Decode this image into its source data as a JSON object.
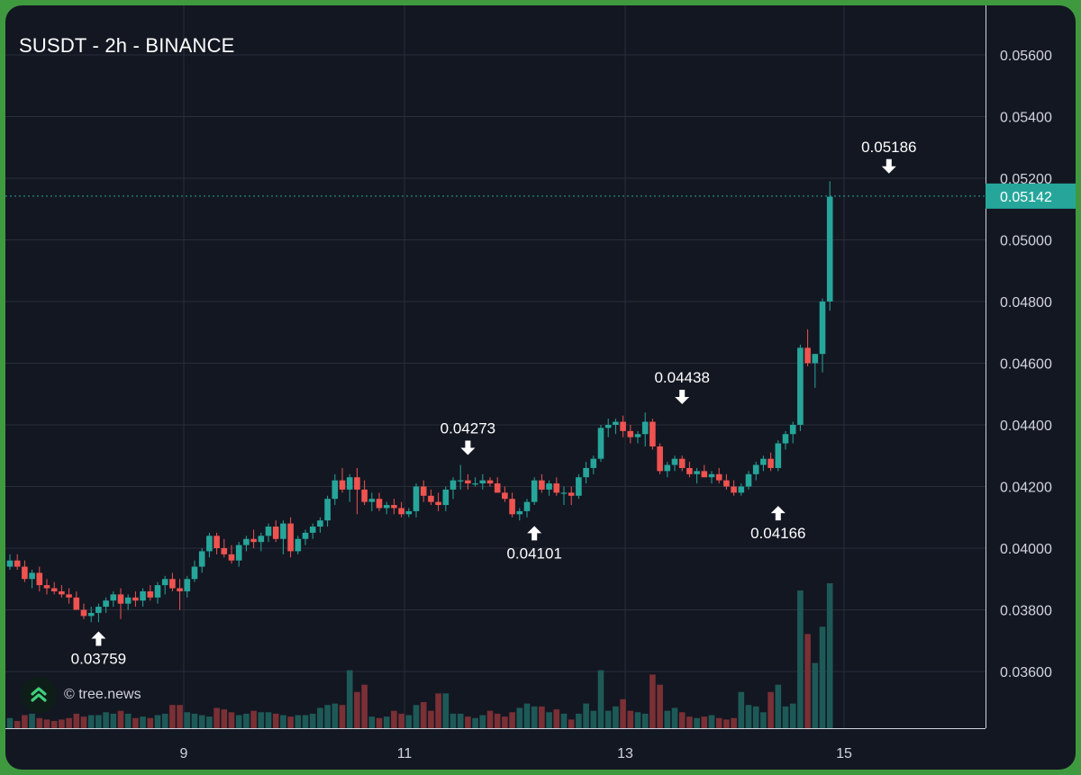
{
  "title": "SUSDT - 2h - BINANCE",
  "watermark": "© tree.news",
  "colors": {
    "background": "#131722",
    "up": "#26a69a",
    "down": "#ef5350",
    "grid": "#2a2e39",
    "axis_text": "#d1d4dc",
    "price_badge": "#26a69a"
  },
  "chart_data": {
    "type": "candlestick",
    "symbol": "SUSDT",
    "interval": "2h",
    "exchange": "BINANCE",
    "x_ticks": [
      "9",
      "11",
      "13",
      "15"
    ],
    "y_ticks": [
      "0.03600",
      "0.03800",
      "0.04000",
      "0.04200",
      "0.04400",
      "0.04600",
      "0.04800",
      "0.05000",
      "0.05200",
      "0.05400",
      "0.05600"
    ],
    "ylim": [
      0.0342,
      0.0576
    ],
    "grid": true,
    "last_price": "0.05142",
    "annotations": [
      {
        "label": "0.03759",
        "bar": 12,
        "price": 0.03759,
        "type": "low"
      },
      {
        "label": "0.04273",
        "bar": 62,
        "price": 0.04273,
        "type": "high"
      },
      {
        "label": "0.04101",
        "bar": 71,
        "price": 0.04101,
        "type": "low"
      },
      {
        "label": "0.04438",
        "bar": 91,
        "price": 0.04438,
        "type": "high"
      },
      {
        "label": "0.04166",
        "bar": 104,
        "price": 0.04166,
        "type": "low"
      },
      {
        "label": "0.05186",
        "bar": 119,
        "price": 0.05186,
        "type": "high"
      }
    ],
    "bars": [
      [
        0.0394,
        0.0398,
        0.0393,
        0.0396,
        0.07
      ],
      [
        0.0396,
        0.0398,
        0.0393,
        0.0394,
        0.05
      ],
      [
        0.0394,
        0.0396,
        0.0389,
        0.039,
        0.09
      ],
      [
        0.039,
        0.0393,
        0.0387,
        0.0392,
        0.1
      ],
      [
        0.0392,
        0.0394,
        0.0386,
        0.0388,
        0.07
      ],
      [
        0.0388,
        0.039,
        0.0385,
        0.0387,
        0.06
      ],
      [
        0.0387,
        0.0389,
        0.0385,
        0.0386,
        0.05
      ],
      [
        0.0386,
        0.0388,
        0.0384,
        0.0385,
        0.06
      ],
      [
        0.0385,
        0.0387,
        0.0382,
        0.0384,
        0.07
      ],
      [
        0.0384,
        0.0386,
        0.038,
        0.038,
        0.1
      ],
      [
        0.038,
        0.0382,
        0.0377,
        0.0378,
        0.08
      ],
      [
        0.0378,
        0.0381,
        0.0376,
        0.0379,
        0.09
      ],
      [
        0.0379,
        0.0382,
        0.0376,
        0.0381,
        0.09
      ],
      [
        0.0381,
        0.0384,
        0.0379,
        0.0383,
        0.11
      ],
      [
        0.0383,
        0.0386,
        0.0381,
        0.0385,
        0.1
      ],
      [
        0.0385,
        0.0387,
        0.0377,
        0.0382,
        0.12
      ],
      [
        0.0382,
        0.0385,
        0.038,
        0.0384,
        0.1
      ],
      [
        0.0384,
        0.0386,
        0.0381,
        0.0383,
        0.07
      ],
      [
        0.0383,
        0.0387,
        0.0381,
        0.0386,
        0.08
      ],
      [
        0.0386,
        0.0388,
        0.0383,
        0.0384,
        0.07
      ],
      [
        0.0384,
        0.0389,
        0.0382,
        0.0388,
        0.09
      ],
      [
        0.0388,
        0.0391,
        0.0385,
        0.039,
        0.1
      ],
      [
        0.039,
        0.0392,
        0.0386,
        0.0387,
        0.16
      ],
      [
        0.0387,
        0.039,
        0.038,
        0.0386,
        0.16
      ],
      [
        0.0386,
        0.0391,
        0.0384,
        0.039,
        0.11
      ],
      [
        0.039,
        0.0396,
        0.0389,
        0.0394,
        0.1
      ],
      [
        0.0394,
        0.04,
        0.0392,
        0.0399,
        0.09
      ],
      [
        0.0399,
        0.0405,
        0.0397,
        0.0404,
        0.08
      ],
      [
        0.0404,
        0.0405,
        0.0398,
        0.04,
        0.14
      ],
      [
        0.04,
        0.0403,
        0.0397,
        0.0398,
        0.13
      ],
      [
        0.0398,
        0.0401,
        0.0395,
        0.0396,
        0.11
      ],
      [
        0.0396,
        0.0402,
        0.0394,
        0.0401,
        0.09
      ],
      [
        0.0401,
        0.0404,
        0.0399,
        0.0403,
        0.1
      ],
      [
        0.0403,
        0.0406,
        0.04,
        0.0402,
        0.12
      ],
      [
        0.0402,
        0.0405,
        0.0399,
        0.0404,
        0.11
      ],
      [
        0.0404,
        0.0408,
        0.0402,
        0.0407,
        0.11
      ],
      [
        0.0407,
        0.0409,
        0.0402,
        0.0403,
        0.1
      ],
      [
        0.0403,
        0.0409,
        0.0398,
        0.0408,
        0.09
      ],
      [
        0.0408,
        0.041,
        0.0397,
        0.0399,
        0.08
      ],
      [
        0.0399,
        0.0404,
        0.0398,
        0.0403,
        0.09
      ],
      [
        0.0403,
        0.0406,
        0.0401,
        0.0405,
        0.09
      ],
      [
        0.0405,
        0.0408,
        0.0403,
        0.0407,
        0.1
      ],
      [
        0.0407,
        0.041,
        0.0405,
        0.0409,
        0.14
      ],
      [
        0.0409,
        0.0417,
        0.0407,
        0.0416,
        0.16
      ],
      [
        0.0416,
        0.0424,
        0.0414,
        0.0422,
        0.17
      ],
      [
        0.0422,
        0.0426,
        0.0418,
        0.0419,
        0.16
      ],
      [
        0.0419,
        0.0424,
        0.0415,
        0.0423,
        0.4
      ],
      [
        0.0423,
        0.0426,
        0.0411,
        0.0419,
        0.25
      ],
      [
        0.0419,
        0.0422,
        0.0414,
        0.0415,
        0.3
      ],
      [
        0.0415,
        0.0418,
        0.0412,
        0.0416,
        0.08
      ],
      [
        0.0416,
        0.0418,
        0.0412,
        0.0413,
        0.07
      ],
      [
        0.0413,
        0.0415,
        0.0411,
        0.0414,
        0.08
      ],
      [
        0.0414,
        0.0416,
        0.0411,
        0.0413,
        0.12
      ],
      [
        0.0413,
        0.0415,
        0.041,
        0.0411,
        0.1
      ],
      [
        0.0411,
        0.0413,
        0.041,
        0.0412,
        0.09
      ],
      [
        0.0412,
        0.0421,
        0.041,
        0.042,
        0.16
      ],
      [
        0.042,
        0.0422,
        0.0415,
        0.0417,
        0.18
      ],
      [
        0.0417,
        0.0419,
        0.0414,
        0.0415,
        0.12
      ],
      [
        0.0415,
        0.0418,
        0.0412,
        0.0414,
        0.24
      ],
      [
        0.0414,
        0.042,
        0.0412,
        0.0419,
        0.24
      ],
      [
        0.0419,
        0.0423,
        0.0416,
        0.0422,
        0.1
      ],
      [
        0.0422,
        0.0427,
        0.0419,
        0.0422,
        0.1
      ],
      [
        0.0422,
        0.0424,
        0.0419,
        0.0421,
        0.08
      ],
      [
        0.0421,
        0.0423,
        0.042,
        0.0421,
        0.07
      ],
      [
        0.0421,
        0.0424,
        0.0419,
        0.0422,
        0.09
      ],
      [
        0.0422,
        0.0423,
        0.042,
        0.0421,
        0.12
      ],
      [
        0.0421,
        0.0423,
        0.0418,
        0.0418,
        0.1
      ],
      [
        0.0418,
        0.042,
        0.0415,
        0.0416,
        0.08
      ],
      [
        0.0416,
        0.0418,
        0.041,
        0.0411,
        0.11
      ],
      [
        0.0411,
        0.0413,
        0.0409,
        0.0412,
        0.14
      ],
      [
        0.0412,
        0.0416,
        0.041,
        0.0415,
        0.17
      ],
      [
        0.0415,
        0.0423,
        0.0414,
        0.0422,
        0.15
      ],
      [
        0.0422,
        0.0424,
        0.0418,
        0.0419,
        0.15
      ],
      [
        0.0419,
        0.0422,
        0.0417,
        0.0421,
        0.11
      ],
      [
        0.0421,
        0.0423,
        0.0417,
        0.0418,
        0.13
      ],
      [
        0.0418,
        0.042,
        0.0414,
        0.0418,
        0.1
      ],
      [
        0.0418,
        0.042,
        0.0414,
        0.0417,
        0.06
      ],
      [
        0.0417,
        0.0424,
        0.0416,
        0.0423,
        0.1
      ],
      [
        0.0423,
        0.0428,
        0.0421,
        0.0426,
        0.17
      ],
      [
        0.0426,
        0.043,
        0.0424,
        0.0429,
        0.12
      ],
      [
        0.0429,
        0.044,
        0.0428,
        0.0439,
        0.4
      ],
      [
        0.0439,
        0.0442,
        0.0436,
        0.044,
        0.12
      ],
      [
        0.044,
        0.0442,
        0.0437,
        0.0441,
        0.15
      ],
      [
        0.0441,
        0.0443,
        0.0436,
        0.0438,
        0.2
      ],
      [
        0.0438,
        0.044,
        0.0434,
        0.0436,
        0.12
      ],
      [
        0.0436,
        0.0438,
        0.0434,
        0.0437,
        0.11
      ],
      [
        0.0437,
        0.0444,
        0.0433,
        0.0441,
        0.1
      ],
      [
        0.0441,
        0.0442,
        0.0432,
        0.0433,
        0.37
      ],
      [
        0.0433,
        0.0434,
        0.0424,
        0.0425,
        0.3
      ],
      [
        0.0425,
        0.0428,
        0.0423,
        0.0427,
        0.12
      ],
      [
        0.0427,
        0.043,
        0.0425,
        0.0429,
        0.14
      ],
      [
        0.0429,
        0.043,
        0.0425,
        0.0426,
        0.11
      ],
      [
        0.0426,
        0.0428,
        0.0423,
        0.0424,
        0.08
      ],
      [
        0.0424,
        0.0426,
        0.0421,
        0.0425,
        0.07
      ],
      [
        0.0425,
        0.0427,
        0.0423,
        0.0423,
        0.08
      ],
      [
        0.0423,
        0.0425,
        0.0421,
        0.0424,
        0.09
      ],
      [
        0.0424,
        0.0426,
        0.0421,
        0.0422,
        0.07
      ],
      [
        0.0422,
        0.0424,
        0.0419,
        0.042,
        0.06
      ],
      [
        0.042,
        0.0422,
        0.0417,
        0.0418,
        0.07
      ],
      [
        0.0418,
        0.0421,
        0.0417,
        0.042,
        0.25
      ],
      [
        0.042,
        0.0425,
        0.0419,
        0.0424,
        0.16
      ],
      [
        0.0424,
        0.0428,
        0.0422,
        0.0427,
        0.15
      ],
      [
        0.0427,
        0.043,
        0.0425,
        0.0429,
        0.11
      ],
      [
        0.0429,
        0.0431,
        0.0425,
        0.0426,
        0.25
      ],
      [
        0.0426,
        0.0435,
        0.0425,
        0.0434,
        0.3
      ],
      [
        0.0434,
        0.0438,
        0.0432,
        0.0437,
        0.15
      ],
      [
        0.0437,
        0.0441,
        0.0434,
        0.044,
        0.17
      ],
      [
        0.044,
        0.0466,
        0.0438,
        0.0465,
        0.95
      ],
      [
        0.0465,
        0.0471,
        0.0459,
        0.046,
        0.65
      ],
      [
        0.046,
        0.0463,
        0.0452,
        0.0463,
        0.45
      ],
      [
        0.0463,
        0.0481,
        0.0457,
        0.048,
        0.7
      ],
      [
        0.048,
        0.0519,
        0.0477,
        0.0514,
        1.0
      ]
    ]
  }
}
